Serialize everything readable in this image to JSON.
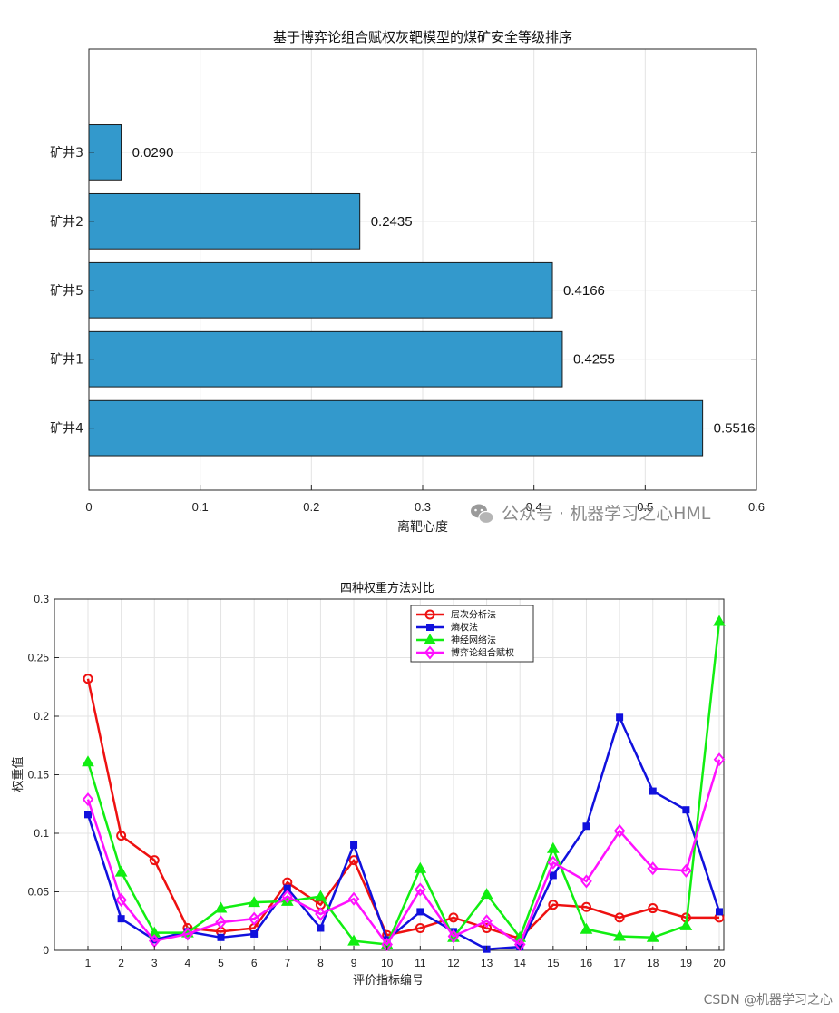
{
  "chart_data": [
    {
      "type": "bar",
      "orientation": "horizontal",
      "title": "基于博弈论组合赋权灰靶模型的煤矿安全等级排序",
      "xlabel": "离靶心度",
      "ylabel": "",
      "categories": [
        "矿井4",
        "矿井1",
        "矿井5",
        "矿井2",
        "矿井3"
      ],
      "values": [
        0.5516,
        0.4255,
        0.4166,
        0.2435,
        0.029
      ],
      "value_labels": [
        "0.5516",
        "0.4255",
        "0.4166",
        "0.2435",
        "0.0290"
      ],
      "xlim": [
        0,
        0.6
      ],
      "xticks": [
        "0",
        "0.1",
        "0.2",
        "0.3",
        "0.4",
        "0.5",
        "0.6"
      ],
      "grid": true,
      "bar_color": "#3399cc"
    },
    {
      "type": "line",
      "title": "四种权重方法对比",
      "xlabel": "评价指标编号",
      "ylabel": "权重值",
      "x": [
        1,
        2,
        3,
        4,
        5,
        6,
        7,
        8,
        9,
        10,
        11,
        12,
        13,
        14,
        15,
        16,
        17,
        18,
        19,
        20
      ],
      "xticks": [
        "1",
        "2",
        "3",
        "4",
        "5",
        "6",
        "7",
        "8",
        "9",
        "10",
        "11",
        "12",
        "13",
        "14",
        "15",
        "16",
        "17",
        "18",
        "19",
        "20"
      ],
      "ylim": [
        0,
        0.3
      ],
      "yticks": [
        "0",
        "0.05",
        "0.1",
        "0.15",
        "0.2",
        "0.25",
        "0.3"
      ],
      "grid": true,
      "legend_position": "top-center",
      "series": [
        {
          "name": "层次分析法",
          "color": "#ee1111",
          "marker": "circle",
          "values": [
            0.232,
            0.098,
            0.077,
            0.019,
            0.016,
            0.019,
            0.058,
            0.039,
            0.077,
            0.013,
            0.019,
            0.028,
            0.019,
            0.01,
            0.039,
            0.037,
            0.028,
            0.036,
            0.028,
            0.028
          ]
        },
        {
          "name": "熵权法",
          "color": "#1111dd",
          "marker": "square",
          "values": [
            0.116,
            0.027,
            0.009,
            0.016,
            0.011,
            0.014,
            0.053,
            0.019,
            0.09,
            0.009,
            0.033,
            0.016,
            0.001,
            0.003,
            0.064,
            0.106,
            0.199,
            0.136,
            0.12,
            0.033
          ]
        },
        {
          "name": "神经网络法",
          "color": "#11ee11",
          "marker": "triangle",
          "values": [
            0.161,
            0.067,
            0.015,
            0.015,
            0.036,
            0.041,
            0.042,
            0.046,
            0.008,
            0.005,
            0.07,
            0.011,
            0.048,
            0.011,
            0.087,
            0.018,
            0.012,
            0.011,
            0.021,
            0.281
          ]
        },
        {
          "name": "博弈论组合赋权",
          "color": "#ff11ff",
          "marker": "diamond",
          "values": [
            0.129,
            0.043,
            0.008,
            0.014,
            0.024,
            0.027,
            0.046,
            0.031,
            0.044,
            0.005,
            0.052,
            0.012,
            0.025,
            0.005,
            0.075,
            0.059,
            0.102,
            0.07,
            0.068,
            0.163
          ]
        }
      ]
    }
  ],
  "watermark": {
    "text": "公众号 · 机器学习之心HML"
  },
  "credit": {
    "text": "CSDN @机器学习之心"
  }
}
